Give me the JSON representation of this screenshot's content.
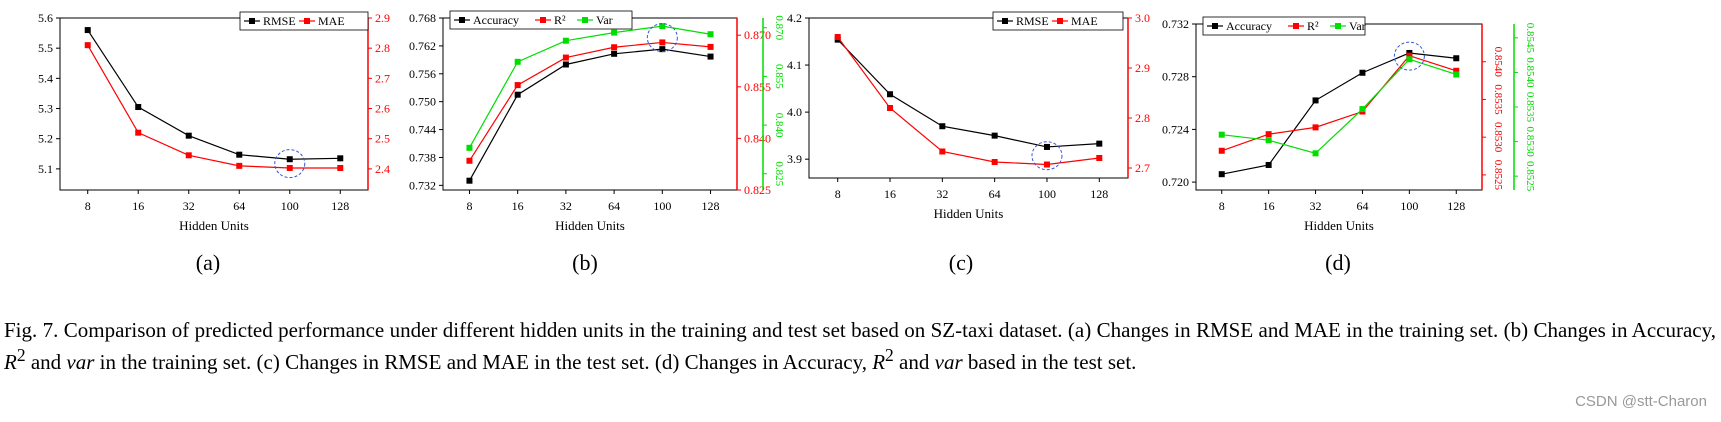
{
  "chart_data": [
    {
      "id": "a",
      "type": "line",
      "subcaption": "(a)",
      "xlabel": "Hidden Units",
      "categories": [
        "8",
        "16",
        "32",
        "64",
        "100",
        "128"
      ],
      "left_axis": {
        "ylim": [
          5.03,
          5.6
        ],
        "ticks": [
          "5.1",
          "5.2",
          "5.3",
          "5.4",
          "5.5",
          "5.6"
        ],
        "color": "#000000"
      },
      "right_axis": {
        "ylim": [
          2.33,
          2.9
        ],
        "ticks": [
          "2.4",
          "2.5",
          "2.6",
          "2.7",
          "2.8",
          "2.9"
        ],
        "color": "#ff0000"
      },
      "series": [
        {
          "name": "RMSE",
          "axis": "left",
          "color": "#000000",
          "values": [
            5.56,
            5.305,
            5.21,
            5.147,
            5.132,
            5.135
          ]
        },
        {
          "name": "MAE",
          "axis": "right",
          "color": "#ff0000",
          "values": [
            2.81,
            2.52,
            2.445,
            2.41,
            2.403,
            2.403
          ]
        }
      ],
      "legend_position": "top-right",
      "highlight_category": "100"
    },
    {
      "id": "b",
      "type": "line",
      "subcaption": "(b)",
      "xlabel": "",
      "xlabel_text": "Hidden Units",
      "categories": [
        "8",
        "16",
        "32",
        "64",
        "100",
        "128"
      ],
      "left_axis": {
        "ylim": [
          0.731,
          0.768
        ],
        "ticks": [
          "0.732",
          "0.738",
          "0.744",
          "0.750",
          "0.756",
          "0.762",
          "0.768"
        ],
        "color": "#000000"
      },
      "right_axis": {
        "ylim": [
          0.825,
          0.875
        ],
        "ticks": [
          "0.825",
          "0.840",
          "0.855",
          "0.870"
        ],
        "color": "#ff0000"
      },
      "right_axis2": {
        "ylim": [
          0.82,
          0.873
        ],
        "ticks": [
          "0.825",
          "0.840",
          "0.855",
          "0.870"
        ],
        "color": "#00dd00"
      },
      "series": [
        {
          "name": "Accuracy",
          "axis": "left",
          "color": "#000000",
          "values": [
            0.733,
            0.7515,
            0.758,
            0.7603,
            0.7613,
            0.7597
          ]
        },
        {
          "name": "R²",
          "axis": "right",
          "color": "#ff0000",
          "values": [
            0.8335,
            0.8555,
            0.8635,
            0.8665,
            0.8679,
            0.8666
          ]
        },
        {
          "name": "Var",
          "axis": "right2",
          "color": "#00dd00",
          "values": [
            0.833,
            0.8595,
            0.866,
            0.8685,
            0.8705,
            0.868
          ]
        }
      ],
      "legend_position": "top-left",
      "highlight_category": "100"
    },
    {
      "id": "c",
      "type": "line",
      "subcaption": "(c)",
      "xlabel": "Hidden Units",
      "categories": [
        "8",
        "16",
        "32",
        "64",
        "100",
        "128"
      ],
      "left_axis": {
        "ylim": [
          3.86,
          4.2
        ],
        "ticks": [
          "3.9",
          "4.0",
          "4.1",
          "4.2"
        ],
        "color": "#000000"
      },
      "right_axis": {
        "ylim": [
          2.68,
          3.0
        ],
        "ticks": [
          "2.7",
          "2.8",
          "2.9",
          "3.0"
        ],
        "color": "#ff0000"
      },
      "series": [
        {
          "name": "RMSE",
          "axis": "left",
          "color": "#000000",
          "values": [
            4.154,
            4.038,
            3.97,
            3.95,
            3.926,
            3.933
          ]
        },
        {
          "name": "MAE",
          "axis": "right",
          "color": "#ff0000",
          "values": [
            2.962,
            2.82,
            2.733,
            2.712,
            2.707,
            2.72
          ]
        }
      ],
      "legend_position": "top-right",
      "highlight_category": "100"
    },
    {
      "id": "d",
      "type": "line",
      "subcaption": "(d)",
      "xlabel": "Hidden Units",
      "categories": [
        "8",
        "16",
        "32",
        "64",
        "100",
        "128"
      ],
      "left_axis": {
        "ylim": [
          0.7194,
          0.732
        ],
        "ticks": [
          "0.720",
          "0.724",
          "0.728",
          "0.732"
        ],
        "color": "#000000"
      },
      "right_axis": {
        "ylim": [
          0.8523,
          0.8545
        ],
        "ticks": [
          "0.8525",
          "0.8530",
          "0.8535",
          "0.8540"
        ],
        "color": "#ff0000"
      },
      "right_axis2": {
        "ylim": [
          0.8523,
          0.8547
        ],
        "ticks": [
          "0.8525",
          "0.8530",
          "0.8535",
          "0.8540",
          "0.8545"
        ],
        "color": "#00dd00"
      },
      "series": [
        {
          "name": "Accuracy",
          "axis": "left",
          "color": "#000000",
          "values": [
            0.7206,
            0.7213,
            0.7262,
            0.7283,
            0.7298,
            0.7294
          ]
        },
        {
          "name": "R²",
          "axis": "right",
          "color": "#ff0000",
          "values": [
            0.85282,
            0.85304,
            0.85313,
            0.85334,
            0.85408,
            0.85388
          ]
        },
        {
          "name": "Var",
          "axis": "right2",
          "color": "#00dd00",
          "values": [
            0.8531,
            0.85302,
            0.85283,
            0.85347,
            0.85419,
            0.85397
          ]
        }
      ],
      "legend_position": "top-left",
      "highlight_category": "100"
    }
  ],
  "caption": {
    "part1": "Fig. 7.   Comparison of predicted performance under different hidden units in the training and test set based on SZ-taxi dataset. (a) Changes in RMSE and MAE in the training set. (b) Changes in Accuracy, ",
    "r2_a": "R",
    "sup_a": "2",
    "part2": " and ",
    "var_a": "var",
    "part3": " in the training set. (c) Changes in RMSE and MAE in the test set. (d) Changes in Accuracy, ",
    "r2_b": "R",
    "sup_b": "2",
    "part4": " and ",
    "var_b": "var",
    "part5": " based in the test set."
  },
  "watermark": "CSDN @stt-Charon"
}
